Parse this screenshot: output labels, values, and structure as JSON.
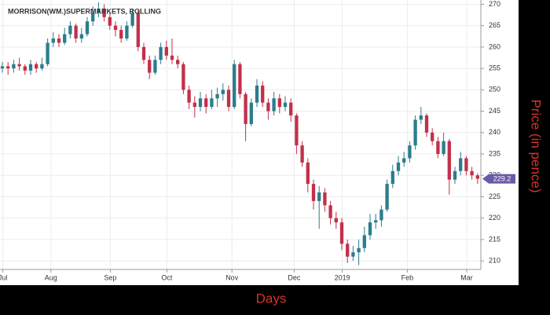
{
  "chart_data": {
    "type": "candlestick",
    "title": "MORRISON(WM.)SUPERMARKETS, ROLLING",
    "x_label": "Days",
    "y_label": "Price (in pence)",
    "x": [
      0,
      2,
      4,
      6,
      8,
      10,
      12,
      14,
      16,
      18,
      20,
      22,
      24,
      26,
      28,
      30,
      32,
      34,
      36,
      38,
      40,
      42,
      44,
      46,
      48,
      50,
      52,
      54,
      56,
      58,
      60,
      62,
      64,
      66,
      68,
      70,
      72,
      74,
      76,
      78,
      80,
      82,
      84,
      86,
      88,
      90,
      92,
      94,
      96,
      98,
      100,
      102,
      104,
      106,
      108,
      110,
      112,
      114,
      116,
      118,
      120,
      122,
      124,
      126,
      128,
      130,
      132,
      134,
      136,
      138,
      140,
      142,
      144,
      146,
      148,
      150,
      152,
      154,
      156,
      158,
      160,
      162,
      164,
      166,
      168
    ],
    "open": [
      255,
      255.5,
      255,
      256,
      255.5,
      254.5,
      256,
      255,
      256,
      261,
      262,
      261,
      263,
      265,
      262,
      263,
      266,
      268,
      269,
      267,
      265,
      264,
      262,
      265,
      268,
      260,
      257,
      254,
      257,
      260,
      258,
      257,
      256,
      250,
      247,
      246,
      248,
      246,
      248,
      249,
      250,
      246,
      256,
      249,
      242,
      247,
      251,
      247,
      245,
      248,
      246,
      247,
      244,
      237,
      233,
      228,
      224,
      226,
      223,
      220,
      219,
      214,
      211,
      212,
      213,
      216,
      219,
      219.5,
      222,
      228,
      231,
      233,
      234,
      237,
      243,
      244,
      240,
      238,
      235,
      238,
      229,
      231,
      234,
      231,
      230
    ],
    "high": [
      256.5,
      256.5,
      257,
      257.5,
      256,
      257,
      256.5,
      257.5,
      262,
      263.5,
      263,
      264.5,
      266,
      265.5,
      264.5,
      267,
      269.5,
      270.5,
      270,
      268,
      266,
      265,
      266,
      269,
      268.5,
      261,
      258,
      258,
      261,
      261.5,
      262,
      258,
      256.5,
      251,
      248.5,
      249.5,
      249,
      250,
      250.5,
      251.5,
      251,
      257,
      256.5,
      249.5,
      248,
      252.5,
      252,
      248,
      249.5,
      249,
      248.5,
      248,
      244.5,
      238,
      234,
      229,
      227.5,
      227,
      224,
      221.5,
      220,
      215,
      213.5,
      215,
      218,
      221,
      221,
      223,
      229,
      232.5,
      234.5,
      235.5,
      238,
      244,
      246,
      244.5,
      241,
      239,
      240,
      238.5,
      232,
      235.5,
      234.5,
      232,
      230.5
    ],
    "low": [
      254,
      253.5,
      254,
      254.5,
      253.5,
      253.5,
      254,
      254.5,
      255.5,
      260,
      260,
      260.5,
      262,
      261,
      261,
      262.5,
      265,
      267,
      266,
      264,
      262.5,
      261,
      261.5,
      264.5,
      259,
      256,
      252.5,
      253.5,
      256,
      257,
      256,
      255,
      249,
      245.5,
      243.5,
      245,
      244.5,
      245.5,
      246,
      247.5,
      245,
      245.5,
      248,
      238,
      241.5,
      246,
      246,
      243,
      244,
      244.5,
      245,
      242.5,
      235,
      232,
      226,
      222,
      217.5,
      221.5,
      218.5,
      217.5,
      212.5,
      209.5,
      210,
      209,
      212,
      215,
      217.5,
      218,
      221.5,
      227,
      230,
      232,
      233,
      236,
      242,
      239,
      237,
      234,
      234.5,
      225.5,
      228,
      230,
      230,
      229,
      228
    ],
    "close": [
      255.5,
      255,
      256,
      255.5,
      254.5,
      256,
      255,
      256,
      261,
      262,
      261,
      263,
      265,
      262,
      263,
      266,
      268,
      269,
      267,
      265,
      264,
      262,
      265,
      268,
      260,
      257,
      254,
      257,
      260,
      258,
      257,
      256,
      250,
      247,
      246,
      248,
      246,
      248,
      249,
      250,
      246,
      256,
      249,
      242,
      247,
      251,
      247,
      245,
      248,
      246,
      247,
      244,
      237,
      233,
      228,
      224,
      226,
      223,
      220,
      219,
      214,
      211,
      212,
      213,
      216,
      219,
      219.5,
      222,
      228,
      231,
      233,
      234,
      237,
      243,
      244,
      240,
      238,
      235,
      238,
      229,
      231,
      234,
      231,
      230,
      229.2
    ],
    "up_color": "#2b7d8c",
    "down_color": "#c2304a",
    "last_color": "#6b5aa6",
    "xlim": [
      0,
      170
    ],
    "xticks": [
      {
        "value": 1,
        "label": "Jul"
      },
      {
        "value": 18,
        "label": "Aug"
      },
      {
        "value": 39,
        "label": "Sep"
      },
      {
        "value": 59,
        "label": "Oct"
      },
      {
        "value": 82,
        "label": "Nov"
      },
      {
        "value": 104,
        "label": "Dec"
      },
      {
        "value": 121,
        "label": "2019"
      },
      {
        "value": 144,
        "label": "Feb"
      },
      {
        "value": 165,
        "label": "Mar"
      }
    ],
    "ylim": [
      208,
      271
    ],
    "yticks": [
      210,
      215,
      220,
      225,
      230,
      235,
      240,
      245,
      250,
      255,
      260,
      265,
      270
    ],
    "grid": true
  }
}
